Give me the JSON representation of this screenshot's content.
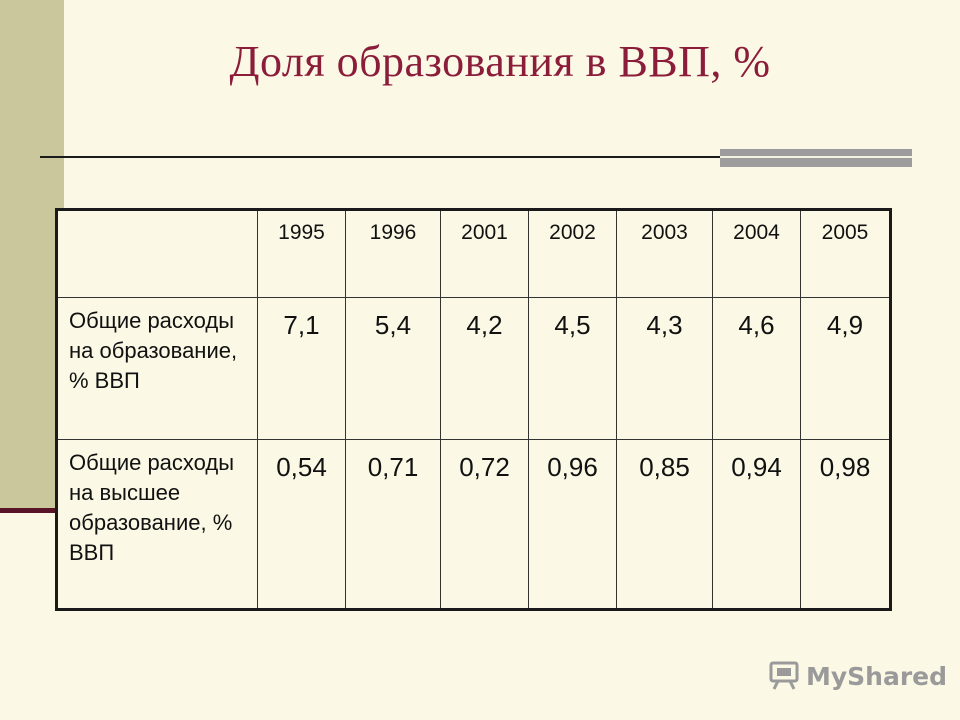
{
  "title": "Доля образования в ВВП, %",
  "table": {
    "years": [
      "1995",
      "1996",
      "2001",
      "2002",
      "2003",
      "2004",
      "2005"
    ],
    "rows": [
      {
        "label": "Общие расходы на образование, % ВВП",
        "values": [
          "7,1",
          "5,4",
          "4,2",
          "4,5",
          "4,3",
          "4,6",
          "4,9"
        ]
      },
      {
        "label": "Общие расходы на высшее образование, % ВВП",
        "values": [
          "0,54",
          "0,71",
          "0,72",
          "0,96",
          "0,85",
          "0,94",
          "0,98"
        ]
      }
    ]
  },
  "watermark": {
    "text": "MyShared",
    "icon": "projector-icon"
  },
  "colors": {
    "title": "#8b1d3b",
    "background": "#fbf9e5",
    "sidebar": "#c9c79b",
    "accent_bar": "#9c9c9c"
  }
}
